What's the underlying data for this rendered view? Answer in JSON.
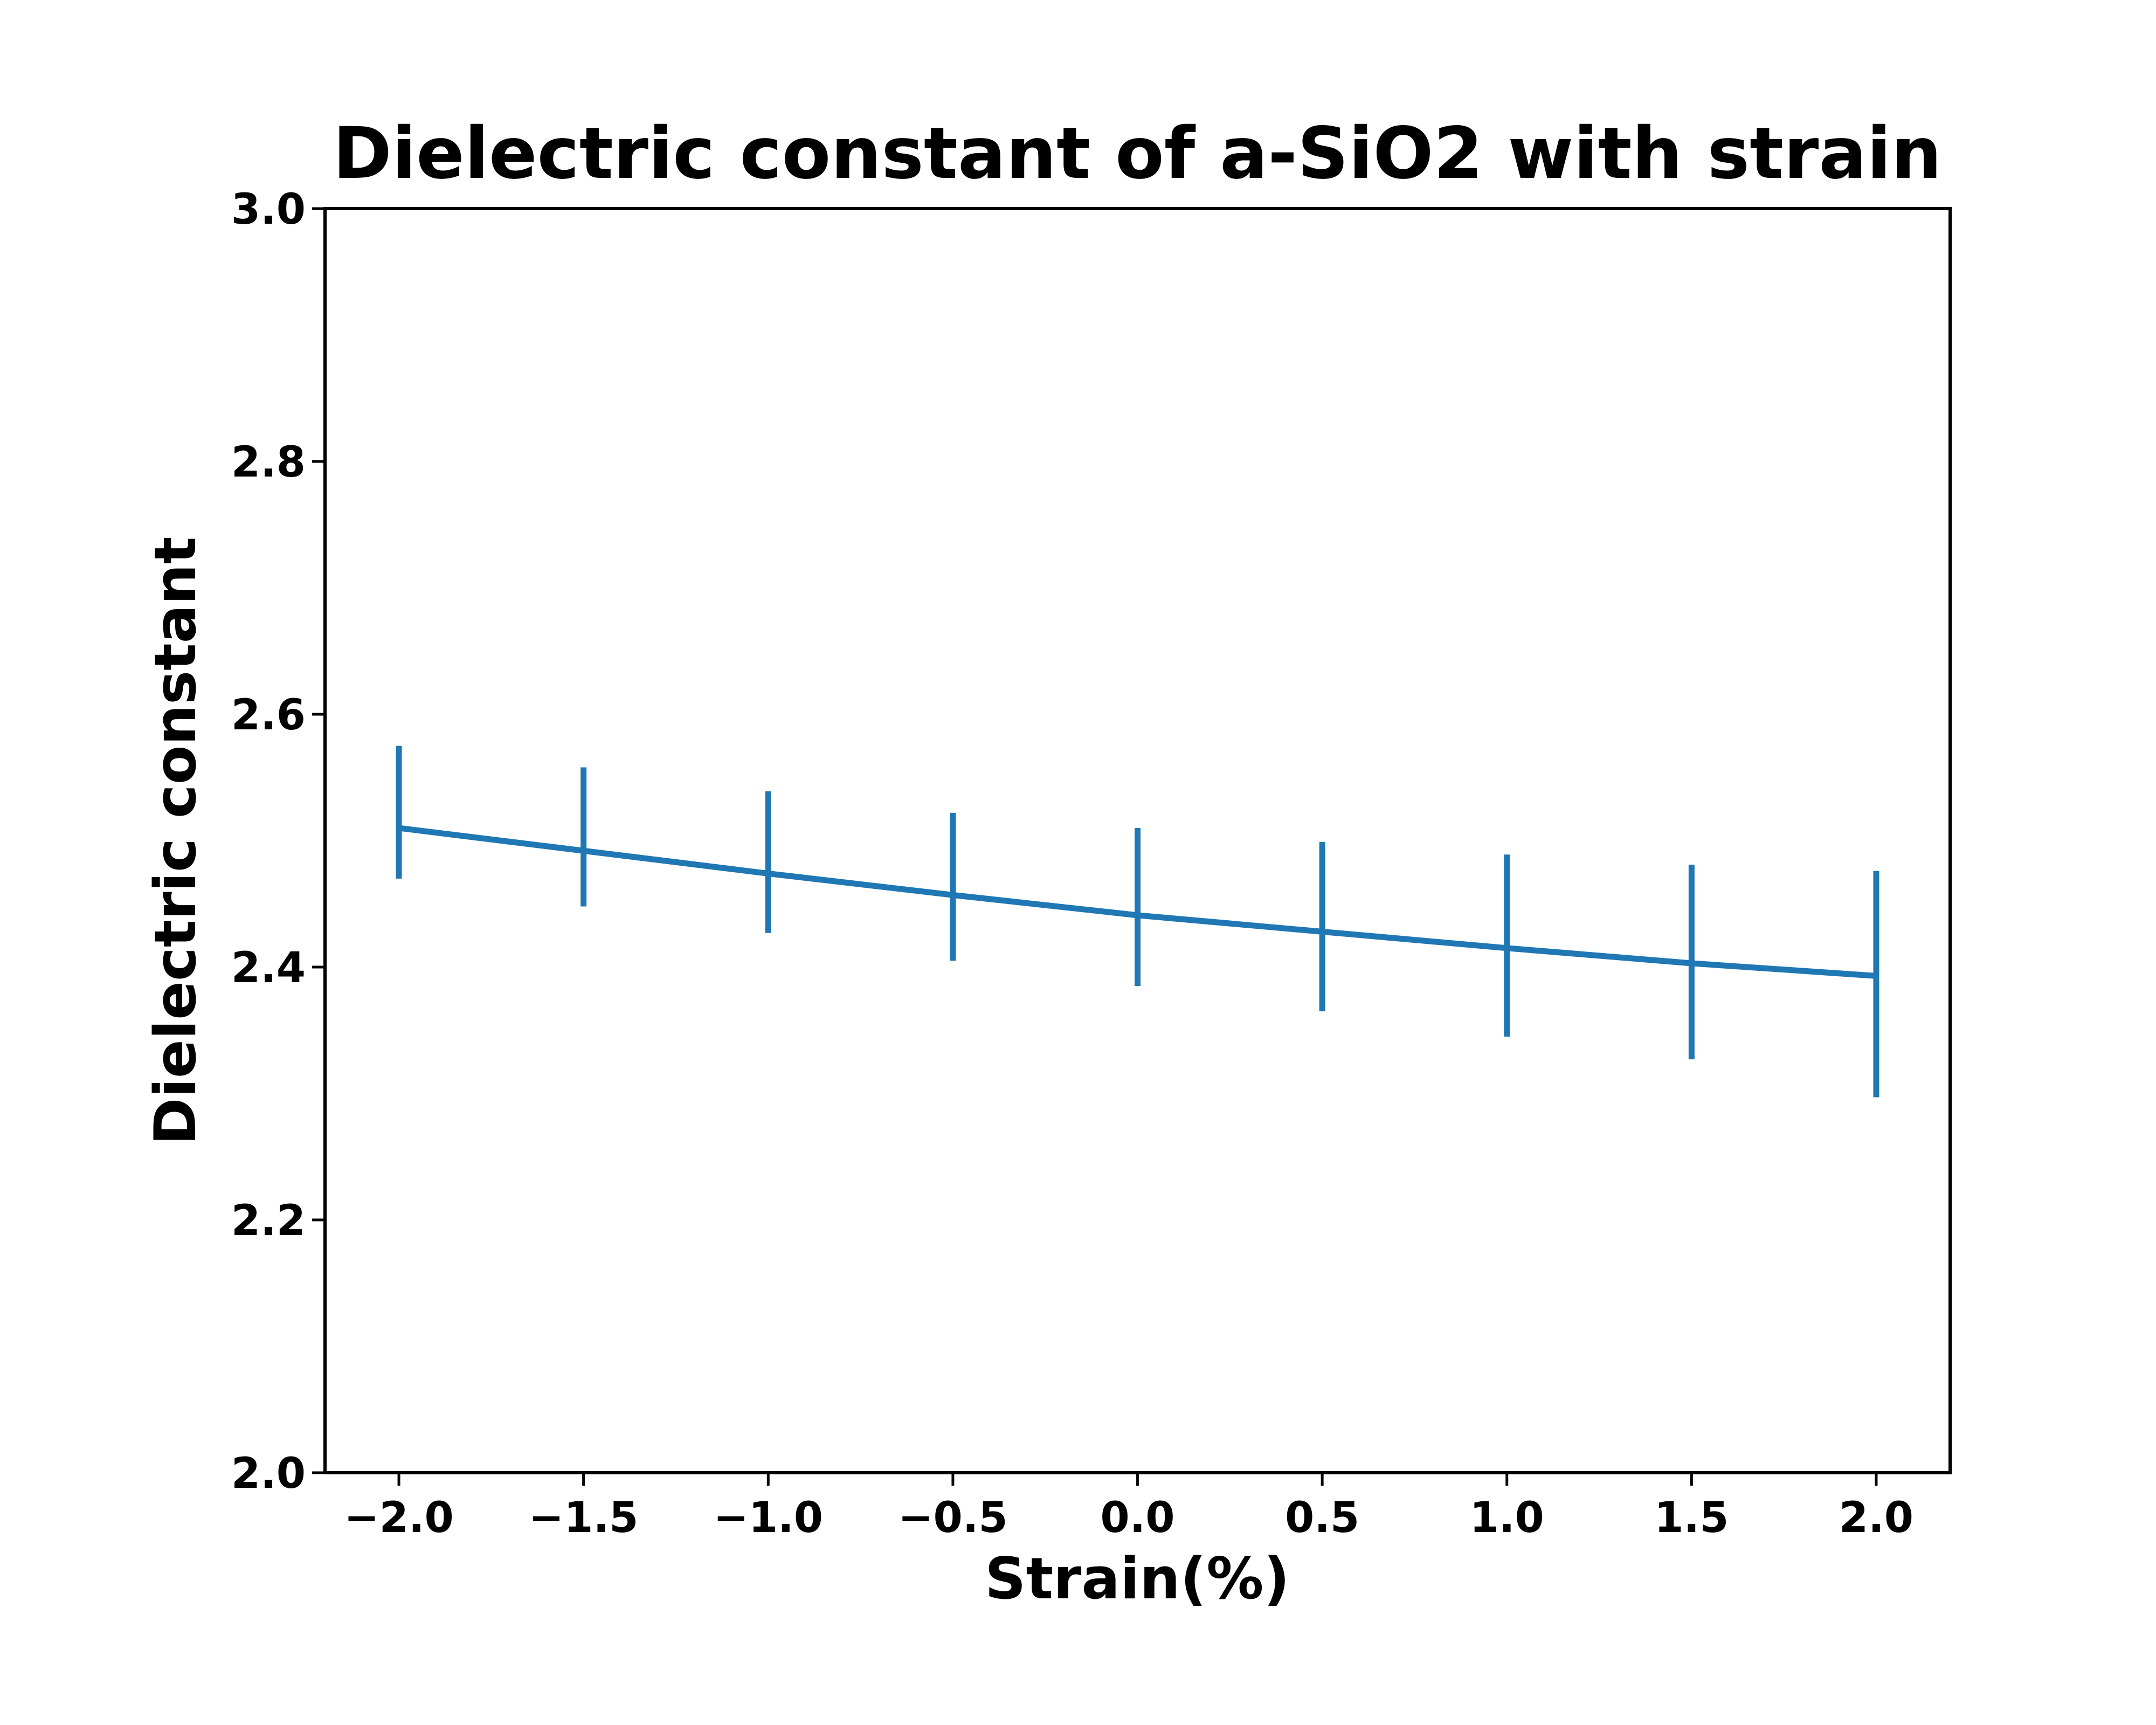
{
  "chart_data": {
    "type": "line",
    "title": "Dielectric constant of a-SiO2 with strain",
    "xlabel": "Strain(%)",
    "ylabel": "Dielectric constant",
    "xlim": [
      -2.2,
      2.2
    ],
    "ylim": [
      2.0,
      3.0
    ],
    "x_ticks": [
      -2.0,
      -1.5,
      -1.0,
      -0.5,
      0.0,
      0.5,
      1.0,
      1.5,
      2.0
    ],
    "x_tick_labels": [
      "−2.0",
      "−1.5",
      "−1.0",
      "−0.5",
      "0.0",
      "0.5",
      "1.0",
      "1.5",
      "2.0"
    ],
    "y_ticks": [
      2.0,
      2.2,
      2.4,
      2.6,
      2.8,
      3.0
    ],
    "y_tick_labels": [
      "2.0",
      "2.2",
      "2.4",
      "2.6",
      "2.8",
      "3.0"
    ],
    "grid": false,
    "legend": "none",
    "series": [
      {
        "color": "#1f77b4",
        "x": [
          -2.0,
          -1.5,
          -1.0,
          -0.5,
          0.0,
          0.5,
          1.0,
          1.5,
          2.0
        ],
        "y": [
          2.51,
          2.492,
          2.474,
          2.457,
          2.441,
          2.428,
          2.415,
          2.403,
          2.393
        ],
        "error_low": [
          2.47,
          2.448,
          2.427,
          2.405,
          2.385,
          2.365,
          2.345,
          2.327,
          2.297
        ],
        "error_high": [
          2.575,
          2.558,
          2.539,
          2.522,
          2.51,
          2.499,
          2.489,
          2.481,
          2.476
        ]
      }
    ]
  }
}
